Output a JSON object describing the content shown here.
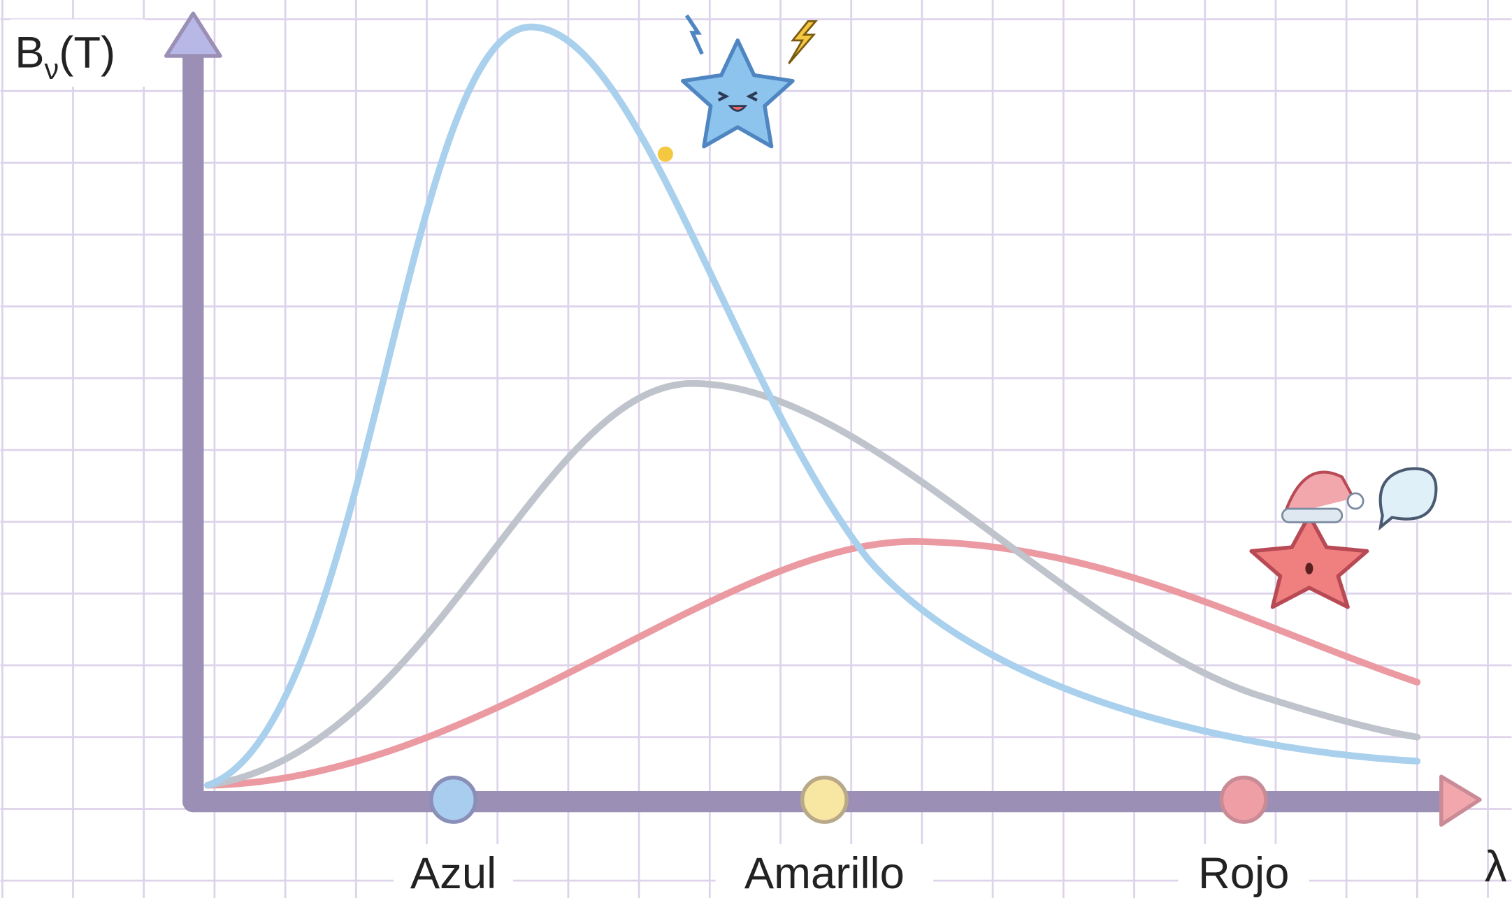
{
  "y_axis_label": {
    "main": "B",
    "subscript": "ν",
    "rest": "(T)"
  },
  "x_axis_label": "λ",
  "markers": [
    {
      "label": "Azul"
    },
    {
      "label": "Amarillo"
    },
    {
      "label": "Rojo"
    }
  ]
}
